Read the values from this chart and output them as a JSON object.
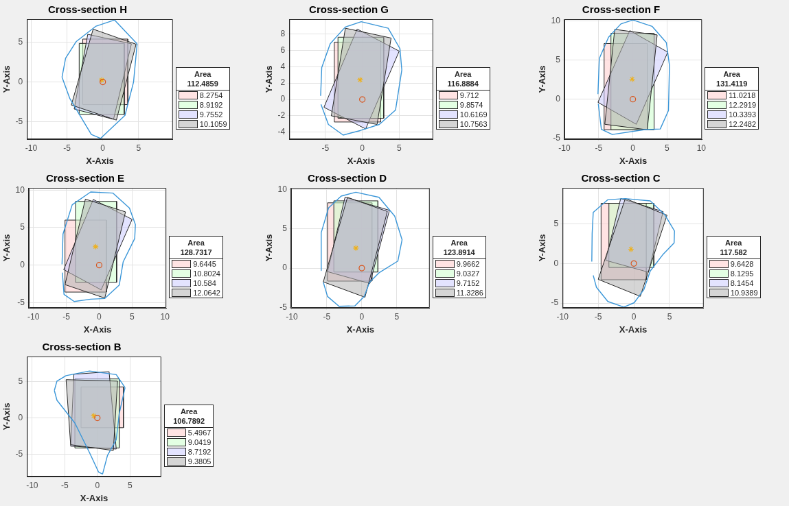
{
  "chart_data": [
    {
      "type": "line",
      "title": "Cross-section H",
      "xlabel": "X-Axis",
      "ylabel": "Y-Axis",
      "xlim": [
        -10.6,
        9.8
      ],
      "ylim": [
        -7.2,
        7.9
      ],
      "xticks": [
        -10,
        -5,
        0,
        5
      ],
      "yticks": [
        -5,
        0,
        5
      ],
      "grid": true,
      "legend": "right",
      "legend_title": "Area\n112.4859",
      "series": [
        {
          "name": "8.2754",
          "type": "area",
          "color": "#ffcccc",
          "x": [
            -2.8,
            3.5,
            3.5,
            -2.8,
            -2.8
          ],
          "values": [
            5.4,
            5.4,
            -2.85,
            -2.85,
            5.4
          ]
        },
        {
          "name": "8.9192",
          "type": "area",
          "color": "#ccffcc",
          "x": [
            -3.3,
            3.0,
            3.0,
            -3.3,
            -3.3
          ],
          "values": [
            4.85,
            4.85,
            -4.1,
            -4.1,
            4.85
          ]
        },
        {
          "name": "9.7552",
          "type": "area",
          "color": "#ccccff",
          "x": [
            -2.1,
            4.0,
            1.5,
            -4.0,
            -2.1
          ],
          "values": [
            6.0,
            4.8,
            -4.7,
            -3.4,
            6.0
          ]
        },
        {
          "name": "10.1059",
          "type": "area",
          "color": "#b3b3b3",
          "x": [
            -1.35,
            4.65,
            1.9,
            -4.4,
            -1.35
          ],
          "values": [
            6.65,
            4.75,
            -4.8,
            -2.9,
            6.65
          ]
        },
        {
          "color": "#3a96d8",
          "x": [
            -5.7,
            -5.2,
            -3.7,
            -1.0,
            1.65,
            4.8
          ],
          "values": [
            0.6,
            3.0,
            5.1,
            7.0,
            7.8,
            4.8
          ]
        },
        {
          "color": "#3a96d8",
          "x": [
            -5.7,
            -4.6,
            -1.6,
            -0.3,
            3.1,
            4.3,
            4.8
          ],
          "values": [
            0.6,
            -2.1,
            -6.6,
            -7.1,
            -4.2,
            0,
            4.8
          ]
        },
        {
          "type": "scatter",
          "color": "#edb120",
          "marker": "cross",
          "x": [
            -0.15
          ],
          "values": [
            0.25
          ]
        },
        {
          "type": "scatter",
          "color": "#d95319",
          "marker": "circle",
          "x": [
            0
          ],
          "values": [
            0
          ]
        }
      ]
    },
    {
      "type": "line",
      "title": "Cross-section G",
      "xlabel": "X-Axis",
      "ylabel": "Y-Axis",
      "xlim": [
        -9.9,
        9.6
      ],
      "ylim": [
        -4.85,
        9.8
      ],
      "xticks": [
        -5,
        0,
        5
      ],
      "yticks": [
        -4,
        -2,
        0,
        2,
        4,
        6,
        8
      ],
      "grid": true,
      "legend": "right",
      "legend_title": "Area\n116.8884",
      "series": [
        {
          "name": "9.712",
          "type": "area",
          "color": "#ffcccc",
          "x": [
            -3.8,
            2.5,
            2.5,
            -3.8,
            -3.8
          ],
          "values": [
            7.0,
            7.0,
            -2.75,
            -2.75,
            7.0
          ]
        },
        {
          "name": "9.8574",
          "type": "area",
          "color": "#ccffcc",
          "x": [
            -3.3,
            2.9,
            2.9,
            -3.3,
            -3.3
          ],
          "values": [
            7.6,
            7.6,
            -2.3,
            -2.3,
            7.6
          ]
        },
        {
          "name": "10.6169",
          "type": "area",
          "color": "#ccccff",
          "x": [
            -0.7,
            5.0,
            0.45,
            -5.2,
            -0.7
          ],
          "values": [
            8.6,
            5.9,
            -3.6,
            -0.95,
            8.6
          ]
        },
        {
          "name": "10.7563",
          "type": "area",
          "color": "#b3b3b3",
          "x": [
            -2.3,
            3.9,
            2.0,
            -4.2,
            -2.3
          ],
          "values": [
            8.7,
            7.5,
            -3.05,
            -2.0,
            8.7
          ]
        },
        {
          "color": "#3a96d8",
          "x": [
            -5.65,
            -5.5,
            -4.35,
            -2.3,
            -0.15,
            3.5,
            5.1,
            5.35,
            4.5,
            2.3,
            -0.3,
            -2.6,
            -4.6,
            -5.6
          ],
          "values": [
            0.45,
            3.9,
            6.8,
            8.85,
            9.5,
            8.7,
            6.2,
            3.6,
            -1.3,
            -3.05,
            -3.8,
            -4.35,
            -3.05,
            -0.6
          ]
        },
        {
          "type": "scatter",
          "color": "#edb120",
          "marker": "cross",
          "x": [
            -0.3
          ],
          "values": [
            2.4
          ]
        },
        {
          "type": "scatter",
          "color": "#d95319",
          "marker": "circle",
          "x": [
            0
          ],
          "values": [
            0
          ]
        }
      ]
    },
    {
      "type": "line",
      "title": "Cross-section F",
      "xlabel": "X-Axis",
      "ylabel": "Y-Axis",
      "xlim": [
        -10,
        10.1
      ],
      "ylim": [
        -5.1,
        10.2
      ],
      "xticks": [
        -10,
        -5,
        0,
        5,
        10
      ],
      "yticks": [
        -5,
        0,
        5,
        10
      ],
      "grid": true,
      "legend": "right",
      "legend_title": "Area\n131.4119",
      "series": [
        {
          "name": "11.0218",
          "type": "area",
          "color": "#ffcccc",
          "x": [
            -4.2,
            2.1,
            2.1,
            -4.2,
            -4.2
          ],
          "values": [
            7.1,
            7.1,
            -3.9,
            -3.9,
            7.1
          ]
        },
        {
          "name": "12.2919",
          "type": "area",
          "color": "#ccffcc",
          "x": [
            -3.2,
            3.1,
            3.1,
            -3.2,
            -3.2
          ],
          "values": [
            8.4,
            8.4,
            -3.9,
            -3.9,
            8.4
          ]
        },
        {
          "name": "10.3393",
          "type": "area",
          "color": "#ccccff",
          "x": [
            -0.45,
            5.1,
            0.5,
            -5.1,
            -0.45
          ],
          "values": [
            8.75,
            6.0,
            -3.2,
            -0.4,
            8.75
          ]
        },
        {
          "name": "12.2482",
          "type": "area",
          "color": "#b3b3b3",
          "x": [
            -2.65,
            3.55,
            2.1,
            -4.1,
            -2.65
          ],
          "values": [
            8.9,
            8.2,
            -3.9,
            -3.2,
            8.9
          ]
        },
        {
          "color": "#3a96d8",
          "x": [
            -5.1,
            -4.9,
            -3.55,
            -1.75,
            0,
            2.8,
            4.9,
            5.35,
            5.2,
            4.0,
            1.6,
            -3.0,
            -4.6,
            -5.05
          ],
          "values": [
            0.65,
            5.2,
            7.9,
            9.6,
            10.1,
            9.3,
            7.2,
            4.3,
            -1.45,
            -3.8,
            -3.9,
            -4.5,
            -3.85,
            -0.6
          ]
        },
        {
          "type": "scatter",
          "color": "#edb120",
          "marker": "cross",
          "x": [
            -0.1
          ],
          "values": [
            2.55
          ]
        },
        {
          "type": "scatter",
          "color": "#d95319",
          "marker": "circle",
          "x": [
            0
          ],
          "values": [
            0
          ]
        }
      ]
    },
    {
      "type": "line",
      "title": "Cross-section E",
      "xlabel": "X-Axis",
      "ylabel": "Y-Axis",
      "xlim": [
        -10.7,
        10.2
      ],
      "ylim": [
        -5.7,
        10.3
      ],
      "xticks": [
        -10,
        -5,
        0,
        5,
        10
      ],
      "yticks": [
        -5,
        0,
        5,
        10
      ],
      "grid": true,
      "legend": "right",
      "legend_title": "Area\n128.7317",
      "series": [
        {
          "name": "9.6445",
          "type": "area",
          "color": "#ffcccc",
          "x": [
            -5.2,
            1.1,
            1.1,
            -5.2,
            -5.2
          ],
          "values": [
            6.0,
            6.0,
            -3.6,
            -3.6,
            6.0
          ]
        },
        {
          "name": "10.8024",
          "type": "area",
          "color": "#ccffcc",
          "x": [
            -3.6,
            2.65,
            2.65,
            -3.6,
            -3.6
          ],
          "values": [
            8.5,
            8.5,
            -2.3,
            -2.3,
            8.5
          ]
        },
        {
          "name": "10.584",
          "type": "area",
          "color": "#ccccff",
          "x": [
            -0.9,
            5.0,
            0.3,
            -5.4,
            -0.9
          ],
          "values": [
            8.75,
            6.1,
            -3.3,
            -0.6,
            8.75
          ]
        },
        {
          "name": "12.0642",
          "type": "area",
          "color": "#b3b3b3",
          "x": [
            -2.1,
            4.0,
            0.85,
            -5.2,
            -2.1
          ],
          "values": [
            8.8,
            7.1,
            -4.4,
            -2.6,
            8.8
          ]
        },
        {
          "color": "#3a96d8",
          "x": [
            -5.65,
            -5.5,
            -4.1,
            -1.3,
            2.1,
            4.6,
            5.5,
            5.4,
            3.65,
            3.05,
            0.85,
            -1.3,
            -3.8,
            -5.35,
            -5.6
          ],
          "values": [
            0.1,
            4.15,
            8.05,
            9.75,
            9.6,
            7.6,
            5.4,
            3.55,
            0.45,
            -2.65,
            -4.45,
            -4.55,
            -4.85,
            -3.9,
            -1.0
          ]
        },
        {
          "type": "scatter",
          "color": "#edb120",
          "marker": "cross",
          "x": [
            -0.55
          ],
          "values": [
            2.45
          ]
        },
        {
          "type": "scatter",
          "color": "#d95319",
          "marker": "circle",
          "x": [
            0
          ],
          "values": [
            0
          ]
        }
      ]
    },
    {
      "type": "line",
      "title": "Cross-section D",
      "xlabel": "X-Axis",
      "ylabel": "Y-Axis",
      "xlim": [
        -10.1,
        9.7
      ],
      "ylim": [
        -5.05,
        10.2
      ],
      "xticks": [
        -10,
        -5,
        0,
        5
      ],
      "yticks": [
        -5,
        0,
        5,
        10
      ],
      "grid": true,
      "legend": "right",
      "legend_title": "Area\n123.8914",
      "series": [
        {
          "name": "9.9662",
          "type": "area",
          "color": "#ffcccc",
          "x": [
            -4.9,
            1.45,
            1.45,
            -4.9,
            -4.9
          ],
          "values": [
            8.3,
            8.3,
            -1.65,
            -1.65,
            8.3
          ]
        },
        {
          "name": "9.0327",
          "type": "area",
          "color": "#ccffcc",
          "x": [
            -4.0,
            2.3,
            2.3,
            -4.0,
            -4.0
          ],
          "values": [
            8.55,
            8.55,
            -0.5,
            -0.5,
            8.55
          ]
        },
        {
          "name": "9.7152",
          "type": "area",
          "color": "#ccccff",
          "x": [
            -2.4,
            3.95,
            1.15,
            -4.9,
            -2.4
          ],
          "values": [
            9.0,
            7.35,
            -1.95,
            -0.45,
            9.0
          ]
        },
        {
          "name": "11.3286",
          "type": "area",
          "color": "#b3b3b3",
          "x": [
            -2.05,
            3.65,
            0.45,
            -5.5,
            -2.05
          ],
          "values": [
            9.0,
            7.2,
            -3.7,
            -1.75,
            9.0
          ]
        },
        {
          "color": "#3a96d8",
          "x": [
            -5.85,
            -5.8,
            -4.75,
            -2.95,
            -0.85,
            2.45,
            4.7,
            5.75,
            5.15,
            2.45,
            1.1,
            0.35,
            -1.0,
            -3.25,
            -4.9,
            -5.5
          ],
          "values": [
            -0.3,
            4.5,
            7.65,
            9.15,
            9.65,
            9.0,
            6.6,
            3.6,
            0.9,
            -0.6,
            -1.8,
            -3.6,
            -4.8,
            -4.85,
            -3.6,
            -1.8
          ]
        },
        {
          "type": "scatter",
          "color": "#edb120",
          "marker": "cross",
          "x": [
            -0.85
          ],
          "values": [
            2.55
          ]
        },
        {
          "type": "scatter",
          "color": "#d95319",
          "marker": "circle",
          "x": [
            0
          ],
          "values": [
            0
          ]
        }
      ]
    },
    {
      "type": "line",
      "title": "Cross-section C",
      "xlabel": "X-Axis",
      "ylabel": "Y-Axis",
      "xlim": [
        -10,
        9.8
      ],
      "ylim": [
        -5.6,
        9.55
      ],
      "xticks": [
        -10,
        -5,
        0,
        5
      ],
      "yticks": [
        -5,
        0,
        5
      ],
      "grid": true,
      "legend": "right",
      "legend_title": "Area\n117.582",
      "series": [
        {
          "name": "9.6428",
          "type": "area",
          "color": "#ffcccc",
          "x": [
            -4.6,
            1.75,
            1.75,
            -4.6,
            -4.6
          ],
          "values": [
            7.6,
            7.6,
            -2.05,
            -2.05,
            7.6
          ]
        },
        {
          "name": "8.1295",
          "type": "area",
          "color": "#ccffcc",
          "x": [
            -3.5,
            2.8,
            2.8,
            -3.5,
            -3.5
          ],
          "values": [
            7.6,
            7.6,
            -0.5,
            -0.5,
            7.6
          ]
        },
        {
          "name": "8.1454",
          "type": "area",
          "color": "#ccccff",
          "x": [
            -1.85,
            4.1,
            2.05,
            -3.95,
            -1.85
          ],
          "values": [
            8.2,
            6.55,
            -1.1,
            0.4,
            8.2
          ]
        },
        {
          "name": "10.9389",
          "type": "area",
          "color": "#b3b3b3",
          "x": [
            -1.2,
            4.65,
            0.9,
            -5.0,
            -1.2
          ],
          "values": [
            8.2,
            6.1,
            -4.15,
            -2.0,
            8.2
          ]
        },
        {
          "color": "#3a96d8",
          "x": [
            -5.9,
            -5.85,
            -5.7,
            -3.65,
            -1.25,
            2.3,
            4.35,
            5.7,
            5.65,
            4.05,
            2.3,
            1.4,
            0.05,
            -1.4,
            -3.65,
            -5.25,
            -5.7
          ],
          "values": [
            0.25,
            3.8,
            6.45,
            8.05,
            8.2,
            7.9,
            6.15,
            4.1,
            2.6,
            1.1,
            -0.95,
            -3.3,
            -4.95,
            -5.5,
            -4.8,
            -3.0,
            -1.5
          ]
        },
        {
          "type": "scatter",
          "color": "#edb120",
          "marker": "cross",
          "x": [
            -0.4
          ],
          "values": [
            1.8
          ]
        },
        {
          "type": "scatter",
          "color": "#d95319",
          "marker": "circle",
          "x": [
            0
          ],
          "values": [
            0
          ]
        }
      ]
    },
    {
      "type": "line",
      "title": "Cross-section B",
      "xlabel": "X-Axis",
      "ylabel": "Y-Axis",
      "xlim": [
        -10.8,
        9.8
      ],
      "ylim": [
        -8.1,
        8.5
      ],
      "xticks": [
        -10,
        -5,
        0,
        5
      ],
      "yticks": [
        -5,
        0,
        5
      ],
      "grid": true,
      "legend": "right",
      "legend_title": "Area\n106.7892",
      "series": [
        {
          "name": "5.4967",
          "type": "area",
          "color": "#ffcccc",
          "x": [
            -2.5,
            4.0,
            4.0,
            -2.5,
            -2.5
          ],
          "values": [
            4.3,
            4.3,
            -1.35,
            -1.35,
            4.3
          ]
        },
        {
          "name": "9.0419",
          "type": "area",
          "color": "#ccffcc",
          "x": [
            -3.45,
            3.35,
            3.35,
            -3.45,
            -3.45
          ],
          "values": [
            5.4,
            5.4,
            -4.15,
            -4.15,
            5.4
          ]
        },
        {
          "name": "8.7192",
          "type": "area",
          "color": "#ccccff",
          "x": [
            -3.6,
            1.8,
            2.9,
            -4.1,
            -3.6
          ],
          "values": [
            6.05,
            6.4,
            -4.3,
            -3.9,
            6.05
          ]
        },
        {
          "name": "9.3805",
          "type": "area",
          "color": "#b3b3b3",
          "x": [
            -4.8,
            3.1,
            2.45,
            -4.1,
            -4.8
          ],
          "values": [
            5.3,
            5.1,
            -4.5,
            -3.7,
            5.3
          ]
        },
        {
          "color": "#3a96d8",
          "x": [
            -6.6,
            -6.2,
            -4.8,
            -1.2,
            2.9,
            4.25
          ],
          "values": [
            3.8,
            5.1,
            5.85,
            6.5,
            6.0,
            4.2
          ]
        },
        {
          "color": "#3a96d8",
          "x": [
            -6.6,
            -6.2,
            -3.45,
            -1.2,
            0.2,
            0.8,
            1.55,
            2.9,
            3.35,
            4.25
          ],
          "values": [
            3.8,
            2.45,
            -0.7,
            -4.8,
            -7.5,
            -7.75,
            -5.2,
            -3.0,
            0.6,
            4.2
          ]
        },
        {
          "type": "scatter",
          "color": "#edb120",
          "marker": "cross",
          "x": [
            -0.55
          ],
          "values": [
            0.3
          ]
        },
        {
          "type": "scatter",
          "color": "#d95319",
          "marker": "circle",
          "x": [
            0
          ],
          "values": [
            0
          ]
        }
      ]
    }
  ]
}
